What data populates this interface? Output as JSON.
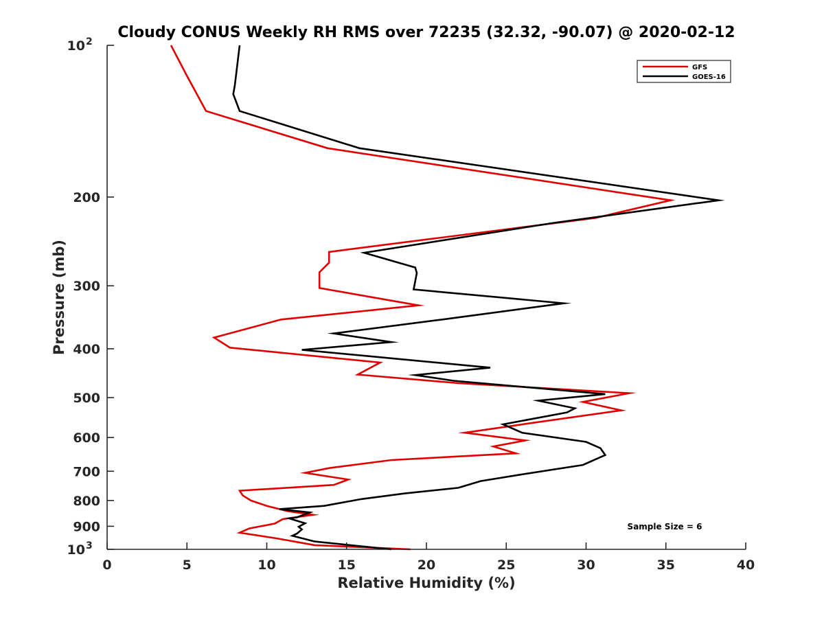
{
  "chart_data": {
    "type": "line",
    "title": "Cloudy CONUS Weekly RH RMS over 72235 (32.32, -90.07) @ 2020-02-12",
    "xlabel": "Relative Humidity (%)",
    "ylabel": "Pressure (mb)",
    "xlim": [
      0,
      40
    ],
    "ylim": [
      100,
      1000
    ],
    "yscale": "log",
    "y_reversed": true,
    "grid": false,
    "legend_position": "top-right",
    "x_ticks": [
      {
        "value": 0,
        "label": "0"
      },
      {
        "value": 5,
        "label": "5"
      },
      {
        "value": 10,
        "label": "10"
      },
      {
        "value": 15,
        "label": "15"
      },
      {
        "value": 20,
        "label": "20"
      },
      {
        "value": 25,
        "label": "25"
      },
      {
        "value": 30,
        "label": "30"
      },
      {
        "value": 35,
        "label": "35"
      },
      {
        "value": 40,
        "label": "40"
      }
    ],
    "y_ticks": [
      {
        "value": 100,
        "label": "10",
        "exp": "2"
      },
      {
        "value": 200,
        "label": "200"
      },
      {
        "value": 300,
        "label": "300"
      },
      {
        "value": 400,
        "label": "400"
      },
      {
        "value": 500,
        "label": "500"
      },
      {
        "value": 600,
        "label": "600"
      },
      {
        "value": 700,
        "label": "700"
      },
      {
        "value": 800,
        "label": "800"
      },
      {
        "value": 900,
        "label": "900"
      },
      {
        "value": 1000,
        "label": "10",
        "exp": "3"
      }
    ],
    "series": [
      {
        "name": "GFS",
        "color": "#e00000",
        "points": [
          [
            4.0,
            100
          ],
          [
            5.0,
            115
          ],
          [
            6.2,
            135
          ],
          [
            13.8,
            160
          ],
          [
            35.3,
            203
          ],
          [
            30.6,
            220
          ],
          [
            13.9,
            257
          ],
          [
            13.9,
            270
          ],
          [
            13.3,
            282
          ],
          [
            13.3,
            303
          ],
          [
            19.5,
            328
          ],
          [
            10.9,
            350
          ],
          [
            6.7,
            380
          ],
          [
            7.7,
            398
          ],
          [
            17.1,
            426
          ],
          [
            15.7,
            450
          ],
          [
            22.0,
            468
          ],
          [
            32.7,
            490
          ],
          [
            29.8,
            510
          ],
          [
            32.2,
            530
          ],
          [
            26.5,
            562
          ],
          [
            22.4,
            587
          ],
          [
            26.2,
            608
          ],
          [
            24.2,
            625
          ],
          [
            25.6,
            645
          ],
          [
            17.8,
            665
          ],
          [
            13.9,
            690
          ],
          [
            12.4,
            705
          ],
          [
            15.1,
            727
          ],
          [
            14.2,
            745
          ],
          [
            8.3,
            765
          ],
          [
            8.5,
            782
          ],
          [
            9.0,
            800
          ],
          [
            10.0,
            820
          ],
          [
            11.3,
            840
          ],
          [
            12.9,
            854
          ],
          [
            11.0,
            871
          ],
          [
            10.5,
            889
          ],
          [
            8.9,
            909
          ],
          [
            8.3,
            927
          ],
          [
            10.6,
            951
          ],
          [
            13.0,
            981
          ],
          [
            19.0,
            1000
          ]
        ]
      },
      {
        "name": "GOES-16",
        "color": "#000000",
        "points": [
          [
            8.3,
            100
          ],
          [
            8.0,
            120
          ],
          [
            7.9,
            125
          ],
          [
            8.3,
            135
          ],
          [
            15.8,
            160
          ],
          [
            38.3,
            203
          ],
          [
            28.0,
            225
          ],
          [
            16.1,
            258
          ],
          [
            19.3,
            276
          ],
          [
            19.4,
            283
          ],
          [
            19.2,
            305
          ],
          [
            28.6,
            325
          ],
          [
            21.0,
            350
          ],
          [
            14.2,
            373
          ],
          [
            17.8,
            388
          ],
          [
            12.2,
            402
          ],
          [
            24.0,
            436
          ],
          [
            19.3,
            451
          ],
          [
            21.7,
            463
          ],
          [
            31.2,
            492
          ],
          [
            27.0,
            507
          ],
          [
            29.3,
            525
          ],
          [
            28.8,
            535
          ],
          [
            24.8,
            565
          ],
          [
            26.0,
            587
          ],
          [
            30.0,
            612
          ],
          [
            30.9,
            630
          ],
          [
            31.2,
            650
          ],
          [
            29.8,
            680
          ],
          [
            26.0,
            710
          ],
          [
            23.4,
            732
          ],
          [
            22.0,
            755
          ],
          [
            18.6,
            775
          ],
          [
            15.9,
            795
          ],
          [
            13.6,
            820
          ],
          [
            10.8,
            832
          ],
          [
            12.7,
            845
          ],
          [
            11.9,
            864
          ],
          [
            11.4,
            868
          ],
          [
            12.4,
            888
          ],
          [
            12.0,
            902
          ],
          [
            12.2,
            913
          ],
          [
            11.9,
            930
          ],
          [
            11.6,
            940
          ],
          [
            13.0,
            965
          ],
          [
            17.8,
            1000
          ]
        ]
      }
    ],
    "annotations": [
      {
        "text": "Sample Size = 6"
      }
    ]
  }
}
